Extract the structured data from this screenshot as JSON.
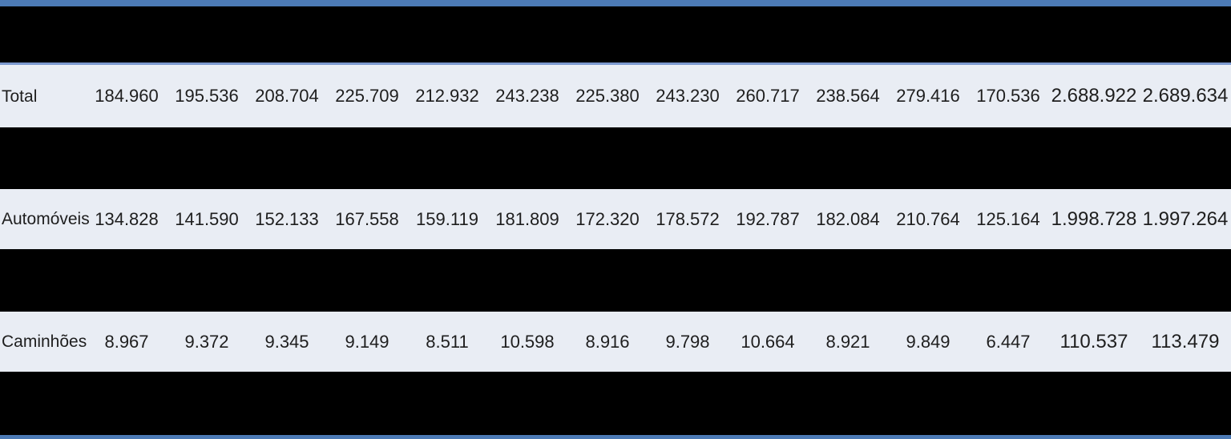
{
  "colors": {
    "accent_bar": "#4C7AB5",
    "divider": "#7C99CF",
    "row_bg": "#E9EDF4",
    "redacted": "#000000",
    "text": "#1e1e1e"
  },
  "chart_data": {
    "type": "table",
    "title": "",
    "notes": "Header row and alternating rows are blacked out (redacted); only three data rows are visible. Numbers use Brazilian thousands-dot formatting. 12 periodic value columns followed by 2 larger total columns.",
    "rows": {
      "total": {
        "label": "Total",
        "values": [
          "184.960",
          "195.536",
          "208.704",
          "225.709",
          "212.932",
          "243.238",
          "225.380",
          "243.230",
          "260.717",
          "238.564",
          "279.416",
          "170.536"
        ],
        "totals": [
          "2.688.922",
          "2.689.634"
        ]
      },
      "automoveis": {
        "label": "Automóveis",
        "values": [
          "134.828",
          "141.590",
          "152.133",
          "167.558",
          "159.119",
          "181.809",
          "172.320",
          "178.572",
          "192.787",
          "182.084",
          "210.764",
          "125.164"
        ],
        "totals": [
          "1.998.728",
          "1.997.264"
        ]
      },
      "caminhoes": {
        "label": "Caminhões",
        "values": [
          "8.967",
          "9.372",
          "9.345",
          "9.149",
          "8.511",
          "10.598",
          "8.916",
          "9.798",
          "10.664",
          "8.921",
          "9.849",
          "6.447"
        ],
        "totals": [
          "110.537",
          "113.479"
        ]
      }
    }
  }
}
